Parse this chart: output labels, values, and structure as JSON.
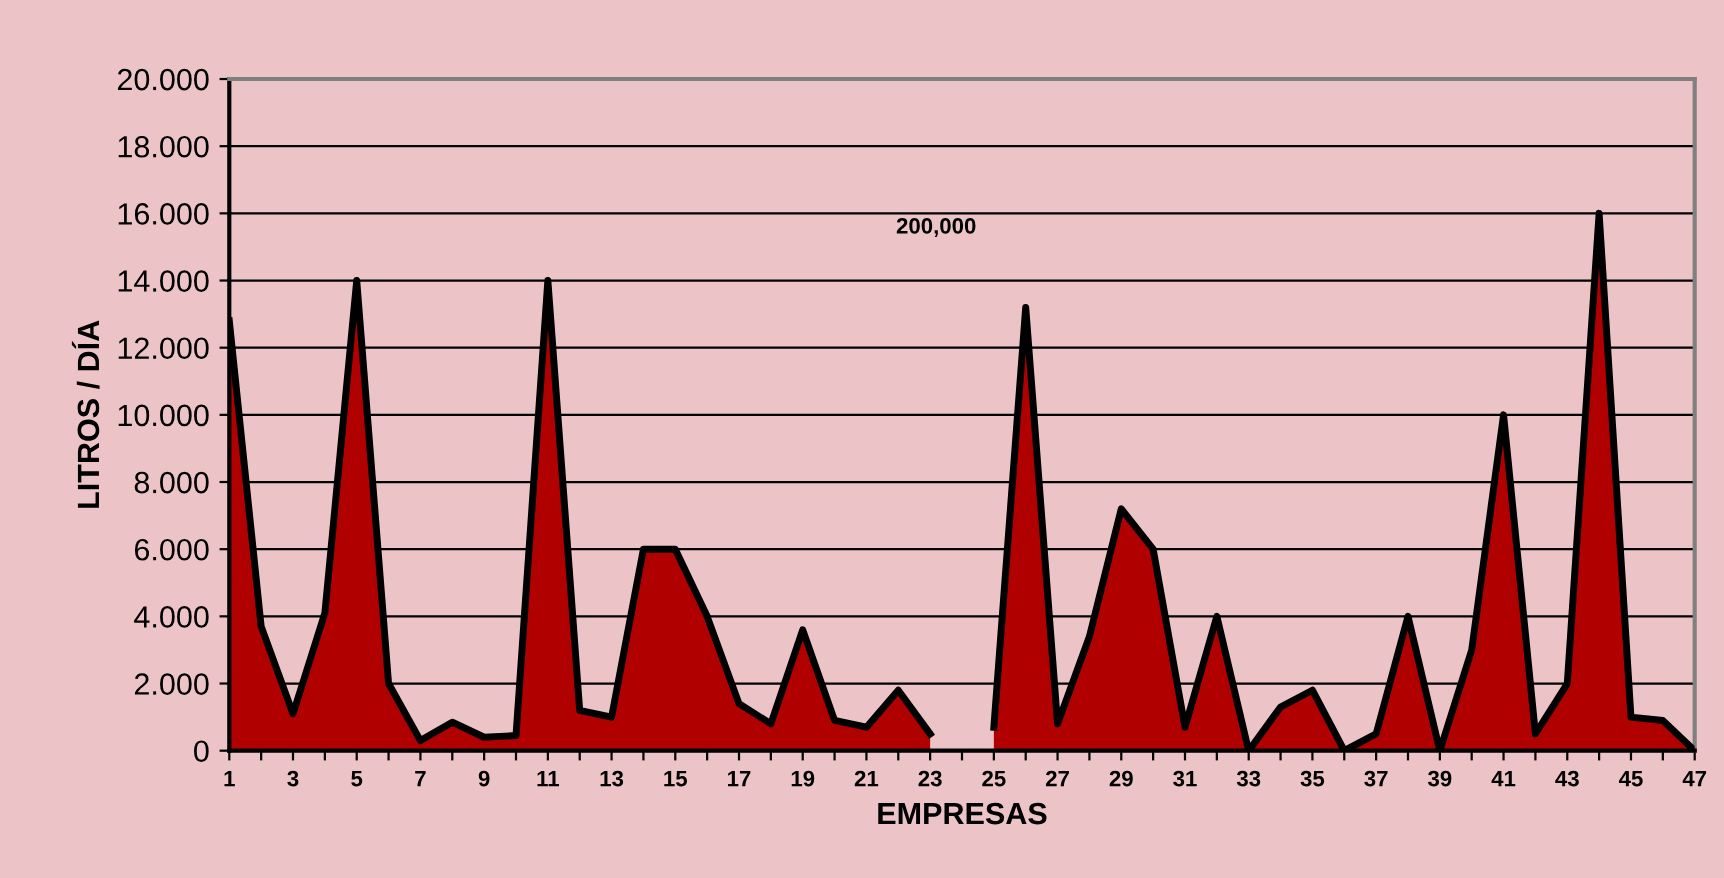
{
  "chart_data": {
    "type": "area",
    "xlabel": "EMPRESAS",
    "ylabel": "LITROS / DÍA",
    "categories": [
      "1",
      null,
      "3",
      null,
      "5",
      null,
      "7",
      null,
      "9",
      null,
      "11",
      null,
      "13",
      null,
      "15",
      null,
      "17",
      null,
      "19",
      null,
      "21",
      null,
      "23",
      null,
      "25",
      null,
      "27",
      null,
      "29",
      null,
      "31",
      null,
      "33",
      null,
      "35",
      null,
      "37",
      null,
      "39",
      null,
      "41",
      null,
      "43",
      null,
      "45",
      null,
      "47"
    ],
    "series": [
      {
        "color": "#b00000",
        "values": [
          12800,
          3700,
          1100,
          4100,
          14000,
          2000,
          300,
          850,
          400,
          450,
          14000,
          1200,
          1000,
          6000,
          6000,
          4000,
          1400,
          800,
          3600,
          900,
          700,
          1800,
          500,
          null,
          700,
          13200,
          800,
          3400,
          7200,
          6000,
          700,
          4000,
          0,
          1300,
          1800,
          0,
          500,
          4000,
          0,
          3000,
          10000,
          500,
          2000,
          16000,
          1000,
          900,
          0
        ]
      }
    ],
    "ylim": [
      0,
      20000
    ],
    "yticks": [
      {
        "value": 0,
        "label": "0"
      },
      {
        "value": 2000,
        "label": "2.000"
      },
      {
        "value": 4000,
        "label": "4.000"
      },
      {
        "value": 6000,
        "label": "6.000"
      },
      {
        "value": 8000,
        "label": "8.000"
      },
      {
        "value": 10000,
        "label": "10.000"
      },
      {
        "value": 12000,
        "label": "12.000"
      },
      {
        "value": 14000,
        "label": "14.000"
      },
      {
        "value": 16000,
        "label": "16.000"
      },
      {
        "value": 18000,
        "label": "18.000"
      },
      {
        "value": 20000,
        "label": "20.000"
      }
    ],
    "grid": "y",
    "annotations": [
      "200,000"
    ]
  }
}
